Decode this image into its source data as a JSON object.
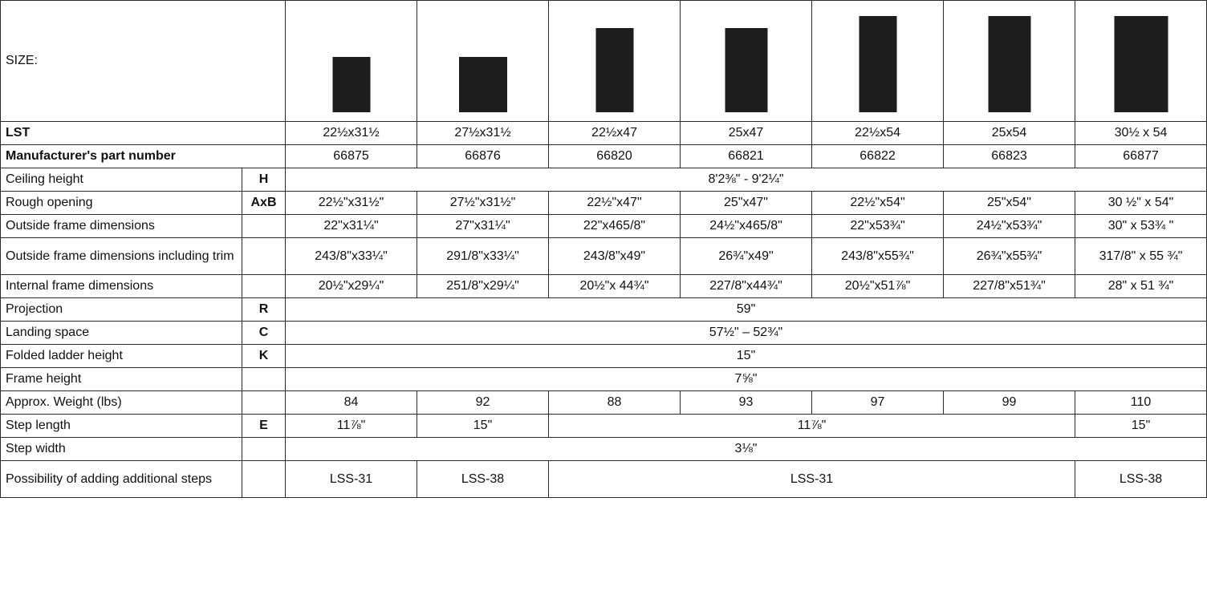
{
  "size_label": "SIZE:",
  "size_icons": [
    {
      "name": "size-icon-66875",
      "shape": "short-square"
    },
    {
      "name": "size-icon-66876",
      "shape": "short-wide"
    },
    {
      "name": "size-icon-66820",
      "shape": "medium-tall"
    },
    {
      "name": "size-icon-66821",
      "shape": "medium-tall"
    },
    {
      "name": "size-icon-66822",
      "shape": "tall"
    },
    {
      "name": "size-icon-66823",
      "shape": "tall"
    },
    {
      "name": "size-icon-66877",
      "shape": "tall"
    }
  ],
  "rows": {
    "lst": {
      "label": "LST",
      "values": [
        "22½x31½",
        "27½x31½",
        "22½x47",
        "25x47",
        "22½x54",
        "25x54",
        "30½ x 54"
      ]
    },
    "part": {
      "label": "Manufacturer's part number",
      "values": [
        "66875",
        "66876",
        "66820",
        "66821",
        "66822",
        "66823",
        "66877"
      ]
    },
    "ceiling": {
      "label": "Ceiling height",
      "sym": "H",
      "value": "8'2⅜\" - 9'2¼\""
    },
    "rough": {
      "label": "Rough opening",
      "sym": "AxB",
      "values": [
        "22½\"x31½\"",
        "27½\"x31½\"",
        "22½\"x47\"",
        "25\"x47\"",
        "22½\"x54\"",
        "25\"x54\"",
        "30 ½\" x 54\""
      ]
    },
    "outside": {
      "label": "Outside frame dimensions",
      "sym": "",
      "values": [
        "22\"x31¼\"",
        "27\"x31¼\"",
        "22\"x465/8\"",
        "24½\"x465/8\"",
        "22\"x53¾\"",
        "24½\"x53¾\"",
        "30\" x 53¾ \""
      ]
    },
    "outside_trim": {
      "label": "Outside frame dimensions including trim",
      "sym": "",
      "values": [
        "243/8\"x33¼\"",
        "291/8\"x33¼\"",
        "243/8\"x49\"",
        "26¾\"x49\"",
        "243/8\"x55¾\"",
        "26¾\"x55¾\"",
        "317/8\" x 55 ¾\""
      ]
    },
    "internal": {
      "label": "Internal frame dimensions",
      "sym": "",
      "values": [
        "20½\"x29¼\"",
        "251/8\"x29¼\"",
        "20½\"x 44¾\"",
        "227/8\"x44¾\"",
        "20½\"x51⅞\"",
        "227/8\"x51¾\"",
        "28\" x 51 ¾\""
      ]
    },
    "projection": {
      "label": "Projection",
      "sym": "R",
      "value": "59\""
    },
    "landing": {
      "label": "Landing space",
      "sym": "C",
      "value": "57½\" – 52¾\""
    },
    "folded": {
      "label": "Folded ladder height",
      "sym": "K",
      "value": "15\""
    },
    "frame_height": {
      "label": "Frame height",
      "sym": "",
      "value": "7⅝\""
    },
    "weight": {
      "label": "Approx. Weight (lbs)",
      "sym": "",
      "values": [
        "84",
        "92",
        "88",
        "93",
        "97",
        "99",
        "110"
      ]
    },
    "step_length": {
      "label": "Step length",
      "sym": "E",
      "v1": "11⅞\"",
      "v2": "15\"",
      "v_mid": "11⅞\"",
      "v7": "15\""
    },
    "step_width": {
      "label": "Step width",
      "sym": "",
      "value": "3⅛\""
    },
    "additional": {
      "label": "Possibility of adding additional steps",
      "sym": "",
      "v1": "LSS-31",
      "v2": "LSS-38",
      "v_mid": "LSS-31",
      "v7": "LSS-38"
    }
  }
}
